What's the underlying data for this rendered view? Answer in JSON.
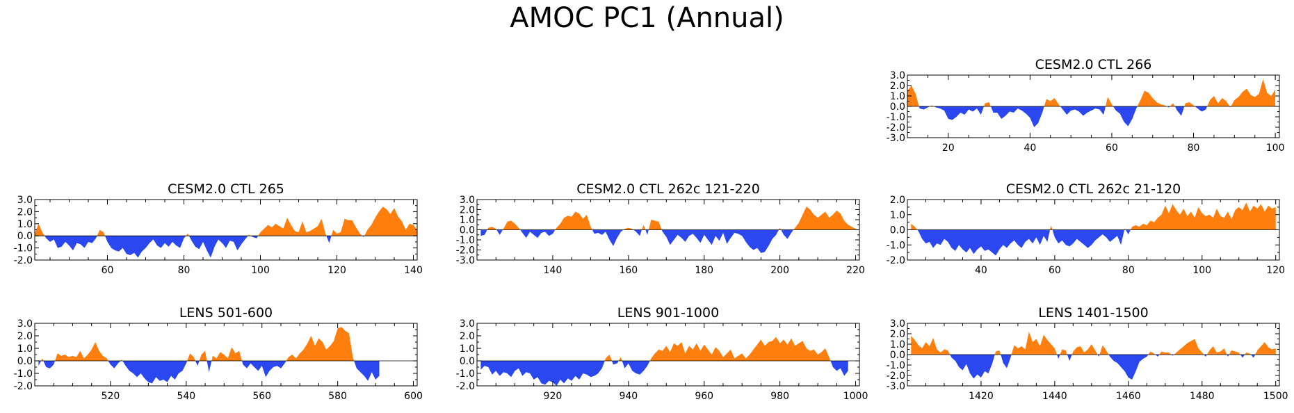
{
  "title": "AMOC PC1 (Annual)",
  "colors": {
    "positive": "#ff7f0e",
    "negative": "#2b47f0",
    "frame": "#000000"
  },
  "chart_data": [
    {
      "type": "area",
      "title": "CESM2.0 CTL 266",
      "xlim": [
        10,
        101
      ],
      "ylim": [
        -3.0,
        3.0
      ],
      "xticks": [
        20,
        40,
        60,
        80,
        100
      ],
      "yticks": [
        "3.0",
        "2.0",
        "1.0",
        "0.0",
        "-1.0",
        "-2.0",
        "-3.0"
      ],
      "x_start": 10,
      "x_step": 1,
      "values": [
        1.5,
        2.0,
        1.2,
        -0.2,
        -0.3,
        -0.1,
        0.1,
        -0.1,
        -0.2,
        -0.4,
        -1.2,
        -1.3,
        -1.0,
        -0.6,
        -0.8,
        -0.3,
        -0.5,
        -0.2,
        -0.8,
        0.3,
        0.4,
        -0.6,
        -0.6,
        -1.2,
        -0.9,
        -0.5,
        -0.6,
        -0.2,
        -0.4,
        -0.7,
        -1.1,
        -2.0,
        -1.6,
        -0.6,
        0.7,
        0.5,
        0.8,
        0.2,
        -0.3,
        -0.8,
        -0.4,
        -0.3,
        -0.5,
        -0.9,
        -0.6,
        -0.4,
        -0.2,
        -0.3,
        -0.8,
        0.9,
        0.2,
        -0.4,
        -0.7,
        -1.5,
        -1.9,
        -1.2,
        -0.2,
        0.6,
        1.5,
        1.3,
        0.8,
        0.4,
        0.2,
        0.1,
        -0.1,
        0.3,
        -0.4,
        -0.9,
        0.3,
        0.4,
        0.1,
        -0.2,
        -0.5,
        -0.3,
        0.6,
        1.0,
        0.3,
        0.8,
        0.5,
        -0.1,
        0.6,
        0.9,
        1.4,
        1.7,
        1.1,
        0.9,
        1.2,
        2.6,
        1.3,
        1.0,
        1.6
      ]
    },
    {
      "type": "area",
      "title": "CESM2.0 CTL 265",
      "xlim": [
        41,
        141
      ],
      "ylim": [
        -2.0,
        3.0
      ],
      "xticks": [
        60,
        80,
        100,
        120,
        140
      ],
      "yticks": [
        "3.0",
        "2.0",
        "1.0",
        "0.0",
        "-1.0",
        "-2.0"
      ],
      "x_start": 41,
      "x_step": 1,
      "values": [
        0.2,
        1.0,
        0.3,
        -0.2,
        -0.5,
        -0.3,
        -1.0,
        -0.9,
        -0.5,
        -0.8,
        -1.2,
        -0.6,
        -0.7,
        -1.0,
        -0.5,
        -0.6,
        -0.2,
        0.5,
        0.3,
        -0.5,
        -1.0,
        -1.2,
        -1.3,
        -1.0,
        -1.5,
        -1.6,
        -1.4,
        -1.8,
        -1.3,
        -1.0,
        -0.6,
        -0.3,
        -0.8,
        -1.0,
        -0.6,
        -0.9,
        -0.5,
        -0.8,
        -1.0,
        -0.2,
        0.2,
        -0.4,
        -0.9,
        -1.1,
        -0.5,
        -1.2,
        -1.8,
        -0.9,
        -0.3,
        -0.6,
        -1.0,
        -0.4,
        -0.5,
        -1.2,
        -0.7,
        -0.3,
        0.1,
        -0.1,
        -0.2,
        0.3,
        0.6,
        0.9,
        0.7,
        1.0,
        0.8,
        0.6,
        1.5,
        0.9,
        0.4,
        0.3,
        1.2,
        0.3,
        0.4,
        0.6,
        0.8,
        1.4,
        0.2,
        -0.6,
        0.5,
        0.2,
        0.3,
        1.4,
        1.3,
        1.3,
        0.7,
        0.2,
        -0.1,
        0.5,
        0.9,
        1.5,
        2.0,
        2.4,
        2.2,
        1.8,
        2.3,
        1.6,
        1.2,
        0.5,
        1.0,
        0.9,
        0.5
      ]
    },
    {
      "type": "area",
      "title": "CESM2.0 CTL 262c 121-220",
      "xlim": [
        120,
        221
      ],
      "ylim": [
        -3.0,
        3.0
      ],
      "xticks": [
        140,
        160,
        180,
        200,
        220
      ],
      "yticks": [
        "3.0",
        "2.0",
        "1.0",
        "0.0",
        "-1.0",
        "-2.0",
        "-3.0"
      ],
      "x_start": 121,
      "x_step": 1,
      "values": [
        -0.6,
        -0.5,
        0.2,
        0.3,
        0.1,
        -0.5,
        0.1,
        0.8,
        0.9,
        0.6,
        0.2,
        -0.3,
        -0.8,
        -0.2,
        -0.5,
        -0.8,
        -0.3,
        -0.2,
        -0.6,
        -0.4,
        0.2,
        0.6,
        1.2,
        1.4,
        1.3,
        1.8,
        1.6,
        1.1,
        1.5,
        0.3,
        -0.4,
        -0.3,
        -0.5,
        -0.2,
        -1.0,
        -1.6,
        -0.8,
        -0.2,
        0.1,
        0.2,
        0.1,
        -0.2,
        -0.6,
        0.5,
        -0.5,
        1.0,
        0.9,
        0.8,
        -0.2,
        -0.7,
        -1.5,
        -1.0,
        -0.5,
        -0.8,
        -1.2,
        -0.6,
        -0.4,
        -0.8,
        -1.3,
        -0.5,
        -1.0,
        -1.5,
        -0.6,
        -1.1,
        -0.3,
        -1.4,
        -0.8,
        -0.3,
        -0.4,
        -0.6,
        -1.2,
        -1.7,
        -2.0,
        -1.8,
        -2.3,
        -2.2,
        -1.6,
        -0.9,
        -0.5,
        0.2,
        -0.5,
        -0.9,
        -0.3,
        0.2,
        0.7,
        1.5,
        2.3,
        2.0,
        1.5,
        1.2,
        1.5,
        1.8,
        1.2,
        1.5,
        1.9,
        1.6,
        0.9,
        0.5,
        0.3,
        0.1
      ]
    },
    {
      "type": "area",
      "title": "CESM2.0 CTL 262c 21-120",
      "xlim": [
        20,
        121
      ],
      "ylim": [
        -2.0,
        2.0
      ],
      "xticks": [
        40,
        60,
        80,
        100,
        120
      ],
      "yticks": [
        "2.0",
        "1.0",
        "0.0",
        "-1.0",
        "-2.0"
      ],
      "x_start": 21,
      "x_step": 1,
      "values": [
        0.4,
        0.2,
        -0.1,
        -0.6,
        -0.9,
        -0.8,
        -1.2,
        -0.9,
        -1.0,
        -0.6,
        -0.8,
        -1.2,
        -1.4,
        -1.0,
        -1.3,
        -1.5,
        -1.2,
        -1.6,
        -1.3,
        -1.1,
        -1.4,
        -1.3,
        -1.5,
        -1.7,
        -1.3,
        -1.0,
        -1.2,
        -0.9,
        -0.7,
        -1.0,
        -1.2,
        -0.8,
        -0.6,
        -0.9,
        -0.5,
        -1.0,
        -0.4,
        -0.8,
        0.3,
        -0.5,
        -0.9,
        -0.7,
        -1.0,
        -1.1,
        -0.9,
        -0.6,
        -0.8,
        -1.0,
        -1.2,
        -1.0,
        -0.7,
        -0.5,
        -0.3,
        -0.5,
        -0.8,
        -0.6,
        -0.4,
        -1.0,
        0.1,
        -0.3,
        0.2,
        0.3,
        0.2,
        0.4,
        0.3,
        0.6,
        0.5,
        0.8,
        1.0,
        1.6,
        1.1,
        1.7,
        1.3,
        1.0,
        1.4,
        0.9,
        1.2,
        0.8,
        1.5,
        1.1,
        0.9,
        1.0,
        0.8,
        1.4,
        0.9,
        0.8,
        1.2,
        0.7,
        1.3,
        1.5,
        1.3,
        1.8,
        1.2,
        1.6,
        1.4,
        1.7,
        1.2,
        1.6,
        1.4,
        1.5
      ]
    },
    {
      "type": "area",
      "title": "LENS 501-600",
      "xlim": [
        500,
        601
      ],
      "ylim": [
        -2.0,
        3.0
      ],
      "xticks": [
        520,
        540,
        560,
        580,
        600
      ],
      "yticks": [
        "3.0",
        "2.0",
        "1.0",
        "0.0",
        "-1.0",
        "-2.0"
      ],
      "x_start": 501,
      "x_step": 1,
      "values": [
        -0.4,
        0.2,
        -0.5,
        -0.6,
        -0.3,
        0.6,
        0.4,
        0.5,
        0.3,
        0.4,
        0.3,
        0.8,
        0.2,
        0.5,
        0.9,
        1.5,
        0.8,
        0.4,
        0.2,
        -0.3,
        -0.6,
        -0.2,
        0.1,
        -0.4,
        -0.8,
        -1.0,
        -1.3,
        -1.0,
        -1.4,
        -1.7,
        -1.8,
        -1.3,
        -1.6,
        -1.5,
        -1.7,
        -1.2,
        -1.5,
        -1.0,
        -0.8,
        -0.2,
        0.6,
        0.3,
        -0.4,
        0.5,
        0.8,
        -0.9,
        0.4,
        0.2,
        0.7,
        0.5,
        0.2,
        1.1,
        0.6,
        0.8,
        -0.3,
        -0.6,
        -0.2,
        -0.5,
        -0.8,
        -0.4,
        -1.3,
        -0.8,
        -0.5,
        -0.4,
        -0.6,
        -0.2,
        0.3,
        0.5,
        0.2,
        0.6,
        0.9,
        1.4,
        2.0,
        1.2,
        1.8,
        1.5,
        0.9,
        1.2,
        1.6,
        2.6,
        2.7,
        2.4,
        2.2,
        0.3,
        -0.6,
        -0.9,
        -1.2,
        -1.6,
        -0.9,
        -1.5,
        -1.2
      ]
    },
    {
      "type": "area",
      "title": "LENS 901-1000",
      "xlim": [
        900,
        1001
      ],
      "ylim": [
        -2.0,
        3.0
      ],
      "xticks": [
        920,
        940,
        960,
        980,
        1000
      ],
      "yticks": [
        "3.0",
        "2.0",
        "1.0",
        "0.0",
        "-1.0",
        "-2.0"
      ],
      "x_start": 901,
      "x_step": 1,
      "values": [
        -0.7,
        -0.4,
        -0.5,
        -1.1,
        -0.8,
        -1.2,
        -0.9,
        -1.0,
        -1.3,
        -0.8,
        -0.6,
        -1.2,
        -0.9,
        -1.0,
        -1.5,
        -1.3,
        -1.8,
        -1.9,
        -1.6,
        -1.7,
        -2.0,
        -1.5,
        -1.8,
        -1.4,
        -1.6,
        -1.2,
        -1.5,
        -1.0,
        -1.1,
        -1.3,
        -1.2,
        -1.0,
        -0.6,
        0.2,
        0.5,
        -0.3,
        -0.2,
        0.3,
        -0.6,
        -0.2,
        -0.8,
        -1.0,
        -1.1,
        -0.8,
        -0.4,
        0.2,
        0.6,
        0.9,
        0.8,
        1.2,
        0.7,
        1.4,
        1.2,
        1.5,
        0.6,
        1.2,
        0.9,
        1.4,
        0.8,
        1.3,
        0.9,
        0.5,
        1.1,
        0.8,
        0.3,
        0.6,
        0.9,
        0.2,
        0.4,
        0.6,
        0.2,
        0.5,
        0.9,
        1.3,
        1.7,
        1.2,
        1.5,
        1.6,
        1.9,
        1.4,
        1.7,
        1.3,
        1.8,
        1.2,
        1.4,
        1.6,
        1.0,
        0.8,
        0.9,
        0.5,
        0.7,
        1.0,
        0.3,
        -0.5,
        -0.8,
        -0.6,
        -1.2,
        -0.8
      ]
    },
    {
      "type": "area",
      "title": "LENS 1401-1500",
      "xlim": [
        1400,
        1501
      ],
      "ylim": [
        -3.0,
        3.0
      ],
      "xticks": [
        1420,
        1440,
        1460,
        1480,
        1500
      ],
      "yticks": [
        "3.0",
        "2.0",
        "1.0",
        "0.0",
        "-1.0",
        "-2.0",
        "-3.0"
      ],
      "x_start": 1401,
      "x_step": 1,
      "values": [
        1.8,
        1.4,
        0.9,
        0.6,
        1.2,
        0.8,
        1.6,
        0.5,
        0.2,
        0.5,
        0.4,
        -0.3,
        -0.6,
        -1.2,
        -1.5,
        -0.9,
        -1.8,
        -2.3,
        -1.9,
        -2.2,
        -1.6,
        -1.8,
        -0.9,
        0.3,
        0.4,
        -0.8,
        -1.3,
        -0.3,
        0.9,
        0.6,
        0.8,
        0.5,
        2.2,
        1.2,
        1.5,
        0.8,
        1.9,
        1.4,
        1.0,
        0.6,
        -0.4,
        0.5,
        0.4,
        -0.6,
        0.3,
        0.7,
        0.8,
        0.2,
        0.5,
        1.0,
        0.4,
        -0.2,
        0.9,
        0.4,
        -0.2,
        -0.6,
        -0.8,
        -1.2,
        -1.6,
        -2.2,
        -2.4,
        -1.6,
        -0.7,
        -0.4,
        -0.2,
        0.3,
        0.1,
        -0.2,
        0.3,
        0.2,
        0.2,
        -0.1,
        0.2,
        0.5,
        0.8,
        1.1,
        1.3,
        1.5,
        0.6,
        0.2,
        -0.2,
        0.4,
        0.8,
        0.2,
        0.3,
        0.6,
        -0.2,
        0.4,
        0.3,
        0.2,
        -0.3,
        0.2,
        0.1,
        -0.3,
        0.4,
        0.8,
        1.2,
        0.7,
        0.5,
        0.6
      ]
    }
  ]
}
